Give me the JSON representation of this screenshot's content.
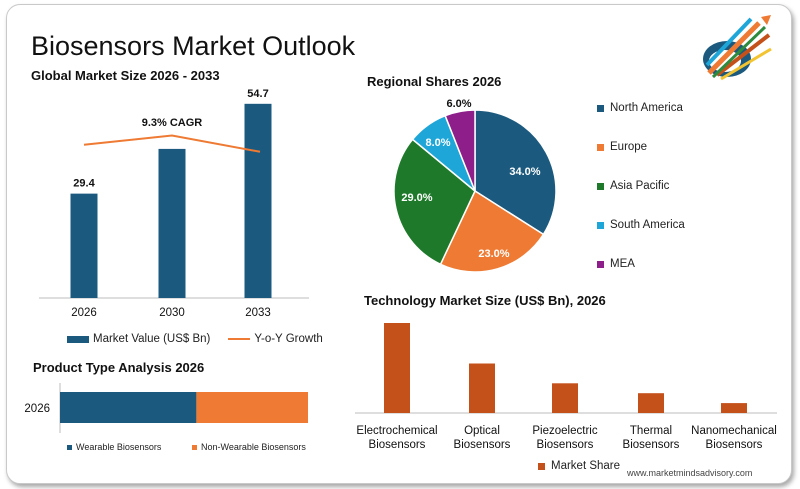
{
  "title": "Biosensors Market Outlook",
  "footer": "www.marketmindsadvisory.com",
  "colors": {
    "navy": "#1b5a7e",
    "orange": "#ee7a33",
    "green": "#1e7a2a",
    "cyan": "#1ea6d8",
    "purple": "#8e1e8a",
    "rust": "#c4501a"
  },
  "chart_data": [
    {
      "type": "bar",
      "title": "Global Market Size 2026 - 2033",
      "categories": [
        "2026",
        "2030",
        "2033"
      ],
      "series": [
        {
          "name": "Market Value (US$ Bn)",
          "values": [
            29.4,
            42.0,
            54.7
          ],
          "labels": [
            "29.4",
            "",
            "54.7"
          ]
        },
        {
          "name": "Y-o-Y Growth",
          "type": "line",
          "values": [
            9.5,
            10.3,
            8.9
          ]
        }
      ],
      "annotation": "9.3% CAGR",
      "ylim": [
        0,
        60
      ]
    },
    {
      "type": "pie",
      "title": "Regional Shares 2026",
      "categories": [
        "North America",
        "Europe",
        "Asia Pacific",
        "South America",
        "MEA"
      ],
      "values": [
        34.0,
        23.0,
        29.0,
        8.0,
        6.0
      ],
      "labels": [
        "34.0%",
        "23.0%",
        "29.0%",
        "8.0%",
        "6.0%"
      ],
      "legend": "right"
    },
    {
      "type": "bar",
      "title": "Product Type Analysis 2026",
      "orientation": "horizontal-stacked",
      "categories": [
        "2026"
      ],
      "series": [
        {
          "name": "Wearable Biosensors",
          "values": [
            55
          ]
        },
        {
          "name": "Non-Wearable Biosensors",
          "values": [
            45
          ]
        }
      ]
    },
    {
      "type": "bar",
      "title": "Technology Market Size (US$ Bn), 2026",
      "categories": [
        [
          "Electrochemical",
          "Biosensors"
        ],
        [
          "Optical",
          "Biosensors"
        ],
        [
          "Piezoelectric",
          "Biosensors"
        ],
        [
          "Thermal",
          "Biosensors"
        ],
        [
          "Nanomechanical",
          "Biosensors"
        ]
      ],
      "series": [
        {
          "name": "Market Share",
          "values": [
            100,
            55,
            33,
            22,
            11
          ]
        }
      ],
      "ylim": [
        0,
        100
      ]
    }
  ]
}
